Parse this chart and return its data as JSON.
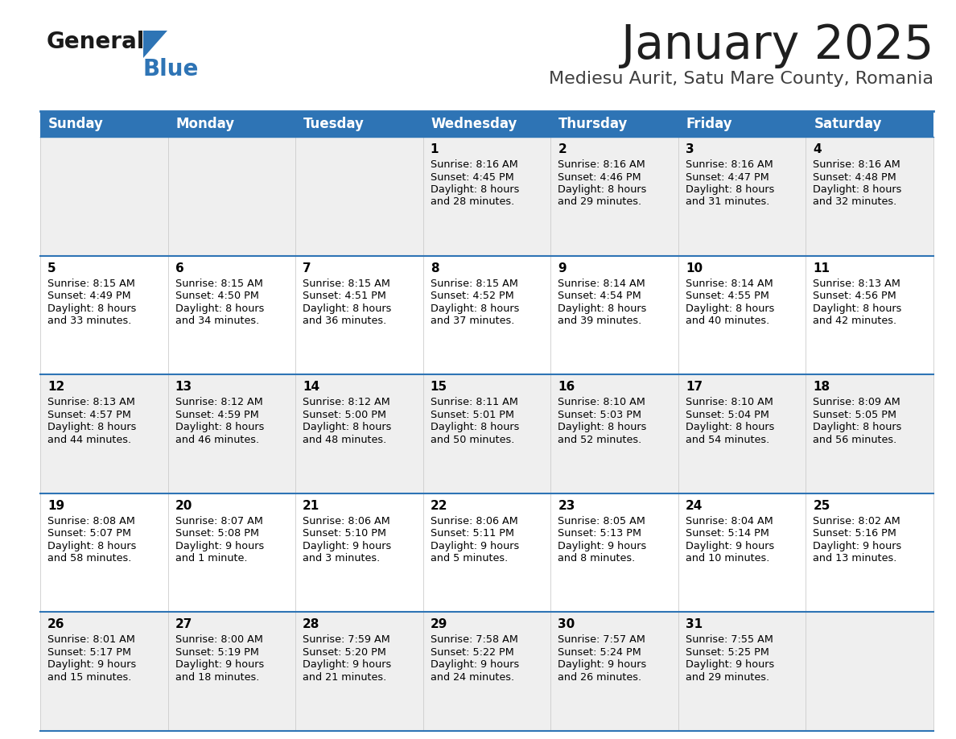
{
  "title": "January 2025",
  "subtitle": "Mediesu Aurit, Satu Mare County, Romania",
  "days_of_week": [
    "Sunday",
    "Monday",
    "Tuesday",
    "Wednesday",
    "Thursday",
    "Friday",
    "Saturday"
  ],
  "header_bg": "#2E74B5",
  "header_text_color": "#FFFFFF",
  "cell_bg_even": "#EFEFEF",
  "cell_bg_odd": "#FFFFFF",
  "divider_color": "#2E74B5",
  "text_color": "#000000",
  "title_color": "#1F1F1F",
  "subtitle_color": "#404040",
  "logo_general_color": "#1A1A1A",
  "logo_blue_color": "#2E74B5",
  "calendar_data": [
    [
      null,
      null,
      null,
      {
        "day": 1,
        "sunrise": "8:16 AM",
        "sunset": "4:45 PM",
        "daylight": "8 hours",
        "daylight2": "and 28 minutes."
      },
      {
        "day": 2,
        "sunrise": "8:16 AM",
        "sunset": "4:46 PM",
        "daylight": "8 hours",
        "daylight2": "and 29 minutes."
      },
      {
        "day": 3,
        "sunrise": "8:16 AM",
        "sunset": "4:47 PM",
        "daylight": "8 hours",
        "daylight2": "and 31 minutes."
      },
      {
        "day": 4,
        "sunrise": "8:16 AM",
        "sunset": "4:48 PM",
        "daylight": "8 hours",
        "daylight2": "and 32 minutes."
      }
    ],
    [
      {
        "day": 5,
        "sunrise": "8:15 AM",
        "sunset": "4:49 PM",
        "daylight": "8 hours",
        "daylight2": "and 33 minutes."
      },
      {
        "day": 6,
        "sunrise": "8:15 AM",
        "sunset": "4:50 PM",
        "daylight": "8 hours",
        "daylight2": "and 34 minutes."
      },
      {
        "day": 7,
        "sunrise": "8:15 AM",
        "sunset": "4:51 PM",
        "daylight": "8 hours",
        "daylight2": "and 36 minutes."
      },
      {
        "day": 8,
        "sunrise": "8:15 AM",
        "sunset": "4:52 PM",
        "daylight": "8 hours",
        "daylight2": "and 37 minutes."
      },
      {
        "day": 9,
        "sunrise": "8:14 AM",
        "sunset": "4:54 PM",
        "daylight": "8 hours",
        "daylight2": "and 39 minutes."
      },
      {
        "day": 10,
        "sunrise": "8:14 AM",
        "sunset": "4:55 PM",
        "daylight": "8 hours",
        "daylight2": "and 40 minutes."
      },
      {
        "day": 11,
        "sunrise": "8:13 AM",
        "sunset": "4:56 PM",
        "daylight": "8 hours",
        "daylight2": "and 42 minutes."
      }
    ],
    [
      {
        "day": 12,
        "sunrise": "8:13 AM",
        "sunset": "4:57 PM",
        "daylight": "8 hours",
        "daylight2": "and 44 minutes."
      },
      {
        "day": 13,
        "sunrise": "8:12 AM",
        "sunset": "4:59 PM",
        "daylight": "8 hours",
        "daylight2": "and 46 minutes."
      },
      {
        "day": 14,
        "sunrise": "8:12 AM",
        "sunset": "5:00 PM",
        "daylight": "8 hours",
        "daylight2": "and 48 minutes."
      },
      {
        "day": 15,
        "sunrise": "8:11 AM",
        "sunset": "5:01 PM",
        "daylight": "8 hours",
        "daylight2": "and 50 minutes."
      },
      {
        "day": 16,
        "sunrise": "8:10 AM",
        "sunset": "5:03 PM",
        "daylight": "8 hours",
        "daylight2": "and 52 minutes."
      },
      {
        "day": 17,
        "sunrise": "8:10 AM",
        "sunset": "5:04 PM",
        "daylight": "8 hours",
        "daylight2": "and 54 minutes."
      },
      {
        "day": 18,
        "sunrise": "8:09 AM",
        "sunset": "5:05 PM",
        "daylight": "8 hours",
        "daylight2": "and 56 minutes."
      }
    ],
    [
      {
        "day": 19,
        "sunrise": "8:08 AM",
        "sunset": "5:07 PM",
        "daylight": "8 hours",
        "daylight2": "and 58 minutes."
      },
      {
        "day": 20,
        "sunrise": "8:07 AM",
        "sunset": "5:08 PM",
        "daylight": "9 hours",
        "daylight2": "and 1 minute."
      },
      {
        "day": 21,
        "sunrise": "8:06 AM",
        "sunset": "5:10 PM",
        "daylight": "9 hours",
        "daylight2": "and 3 minutes."
      },
      {
        "day": 22,
        "sunrise": "8:06 AM",
        "sunset": "5:11 PM",
        "daylight": "9 hours",
        "daylight2": "and 5 minutes."
      },
      {
        "day": 23,
        "sunrise": "8:05 AM",
        "sunset": "5:13 PM",
        "daylight": "9 hours",
        "daylight2": "and 8 minutes."
      },
      {
        "day": 24,
        "sunrise": "8:04 AM",
        "sunset": "5:14 PM",
        "daylight": "9 hours",
        "daylight2": "and 10 minutes."
      },
      {
        "day": 25,
        "sunrise": "8:02 AM",
        "sunset": "5:16 PM",
        "daylight": "9 hours",
        "daylight2": "and 13 minutes."
      }
    ],
    [
      {
        "day": 26,
        "sunrise": "8:01 AM",
        "sunset": "5:17 PM",
        "daylight": "9 hours",
        "daylight2": "and 15 minutes."
      },
      {
        "day": 27,
        "sunrise": "8:00 AM",
        "sunset": "5:19 PM",
        "daylight": "9 hours",
        "daylight2": "and 18 minutes."
      },
      {
        "day": 28,
        "sunrise": "7:59 AM",
        "sunset": "5:20 PM",
        "daylight": "9 hours",
        "daylight2": "and 21 minutes."
      },
      {
        "day": 29,
        "sunrise": "7:58 AM",
        "sunset": "5:22 PM",
        "daylight": "9 hours",
        "daylight2": "and 24 minutes."
      },
      {
        "day": 30,
        "sunrise": "7:57 AM",
        "sunset": "5:24 PM",
        "daylight": "9 hours",
        "daylight2": "and 26 minutes."
      },
      {
        "day": 31,
        "sunrise": "7:55 AM",
        "sunset": "5:25 PM",
        "daylight": "9 hours",
        "daylight2": "and 29 minutes."
      },
      null
    ]
  ]
}
